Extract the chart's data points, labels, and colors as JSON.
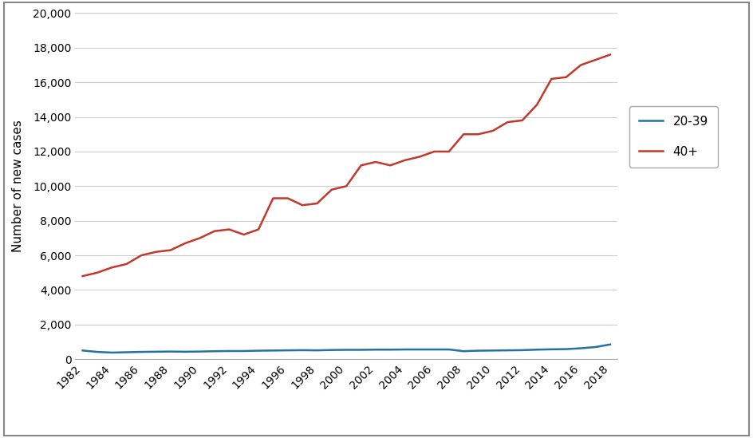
{
  "years": [
    1982,
    1983,
    1984,
    1985,
    1986,
    1987,
    1988,
    1989,
    1990,
    1991,
    1992,
    1993,
    1994,
    1995,
    1996,
    1997,
    1998,
    1999,
    2000,
    2001,
    2002,
    2003,
    2004,
    2005,
    2006,
    2007,
    2008,
    2009,
    2010,
    2011,
    2012,
    2013,
    2014,
    2015,
    2016,
    2017,
    2018
  ],
  "age_40plus": [
    4800,
    5000,
    5300,
    5500,
    6000,
    6200,
    6300,
    6700,
    7000,
    7400,
    7500,
    7200,
    7500,
    9300,
    9300,
    8900,
    9000,
    9800,
    10000,
    11200,
    11400,
    11200,
    11500,
    11700,
    12000,
    12000,
    13000,
    13000,
    13200,
    13700,
    13800,
    14700,
    16200,
    16300,
    17000,
    17300,
    17600
  ],
  "age_20to39": [
    500,
    420,
    380,
    400,
    420,
    430,
    440,
    430,
    440,
    460,
    470,
    470,
    490,
    500,
    510,
    520,
    510,
    530,
    540,
    540,
    550,
    550,
    560,
    560,
    560,
    560,
    460,
    490,
    500,
    510,
    520,
    550,
    570,
    580,
    630,
    700,
    850
  ],
  "color_40plus": "#C0392B",
  "color_20to39": "#2471A3",
  "ylabel": "Number of new cases",
  "ylim": [
    0,
    20000
  ],
  "yticks": [
    0,
    2000,
    4000,
    6000,
    8000,
    10000,
    12000,
    14000,
    16000,
    18000,
    20000
  ],
  "ytick_labels": [
    "0",
    "2,000",
    "4,000",
    "6,000",
    "8,000",
    "10,000",
    "12,000",
    "14,000",
    "16,000",
    "18,000",
    "20,000"
  ],
  "xticks": [
    1982,
    1984,
    1986,
    1988,
    1990,
    1992,
    1994,
    1996,
    1998,
    2000,
    2002,
    2004,
    2006,
    2008,
    2010,
    2012,
    2014,
    2016,
    2018
  ],
  "legend_labels": [
    "20-39",
    "40+"
  ],
  "background_color": "#ffffff",
  "figure_border_color": "#888888",
  "grid_color": "#cccccc",
  "line_width": 1.8,
  "legend_fontsize": 11,
  "ylabel_fontsize": 11,
  "tick_fontsize": 10
}
